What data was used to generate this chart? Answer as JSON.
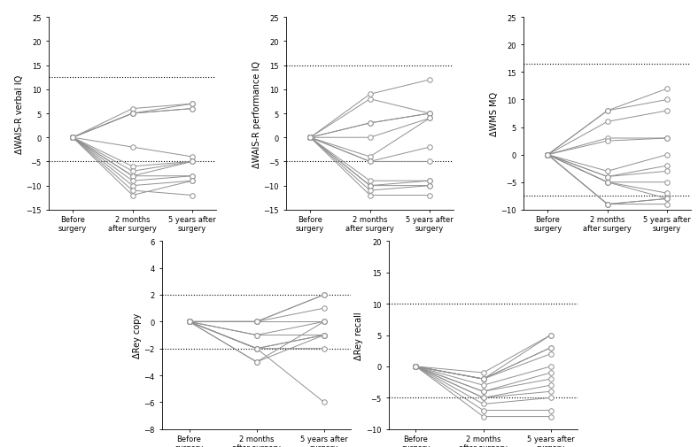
{
  "subplot1": {
    "ylabel": "ΔWAIS-R verbal IQ",
    "hlines": [
      12.5,
      -5.0
    ],
    "ylim": [
      -15,
      25
    ],
    "yticks": [
      -15,
      -10,
      -5,
      0,
      5,
      10,
      15,
      20,
      25
    ],
    "data": [
      [
        0,
        6,
        7
      ],
      [
        0,
        5,
        7
      ],
      [
        0,
        5,
        6
      ],
      [
        0,
        5,
        6
      ],
      [
        0,
        -2,
        -4
      ],
      [
        0,
        -6,
        -5
      ],
      [
        0,
        -7,
        -5
      ],
      [
        0,
        -8,
        -5
      ],
      [
        0,
        -8,
        -8
      ],
      [
        0,
        -9,
        -8
      ],
      [
        0,
        -10,
        -9
      ],
      [
        0,
        -11,
        -12
      ],
      [
        0,
        -12,
        -9
      ]
    ]
  },
  "subplot2": {
    "ylabel": "ΔWAIS-R performance IQ",
    "hlines": [
      15.0,
      -5.0
    ],
    "ylim": [
      -15,
      25
    ],
    "yticks": [
      -15,
      -10,
      -5,
      0,
      5,
      10,
      15,
      20,
      25
    ],
    "data": [
      [
        0,
        9,
        12
      ],
      [
        0,
        8,
        5
      ],
      [
        0,
        3,
        5
      ],
      [
        0,
        3,
        5
      ],
      [
        0,
        0,
        4
      ],
      [
        0,
        -4,
        4
      ],
      [
        0,
        -5,
        -2
      ],
      [
        0,
        -5,
        -5
      ],
      [
        0,
        -9,
        -9
      ],
      [
        0,
        -10,
        -9
      ],
      [
        0,
        -10,
        -10
      ],
      [
        0,
        -11,
        -10
      ],
      [
        0,
        -12,
        -12
      ]
    ]
  },
  "subplot3": {
    "ylabel": "ΔWMS MQ",
    "hlines": [
      16.5,
      -7.5
    ],
    "ylim": [
      -10,
      25
    ],
    "yticks": [
      -10,
      -5,
      0,
      5,
      10,
      15,
      20,
      25
    ],
    "data": [
      [
        0,
        8,
        12
      ],
      [
        0,
        8,
        10
      ],
      [
        0,
        6,
        8
      ],
      [
        0,
        3,
        3
      ],
      [
        0,
        2.5,
        3
      ],
      [
        0,
        -3,
        0
      ],
      [
        0,
        -4,
        -2
      ],
      [
        0,
        -4,
        -3
      ],
      [
        0,
        -5,
        -5
      ],
      [
        0,
        -5,
        -7
      ],
      [
        0,
        -5,
        -8
      ],
      [
        0,
        -9,
        -8
      ],
      [
        0,
        -9,
        -8
      ],
      [
        0,
        -9,
        -9
      ]
    ]
  },
  "subplot4": {
    "ylabel": "ΔRey copy",
    "hlines": [
      2.0,
      -2.0
    ],
    "ylim": [
      -8,
      6
    ],
    "yticks": [
      -8,
      -6,
      -4,
      -2,
      0,
      2,
      4,
      6
    ],
    "data": [
      [
        0,
        0,
        2
      ],
      [
        0,
        0,
        2
      ],
      [
        0,
        0,
        1
      ],
      [
        0,
        0,
        0
      ],
      [
        0,
        -1,
        0
      ],
      [
        0,
        -1,
        -1
      ],
      [
        0,
        -2,
        -1
      ],
      [
        0,
        -2,
        -1
      ],
      [
        0,
        -2,
        -2
      ],
      [
        0,
        -2,
        -6
      ],
      [
        0,
        -3,
        0
      ],
      [
        0,
        -3,
        -1
      ]
    ]
  },
  "subplot5": {
    "ylabel": "ΔRey recall",
    "hlines": [
      10.0,
      -5.0
    ],
    "ylim": [
      -10,
      20
    ],
    "yticks": [
      -10,
      -5,
      0,
      5,
      10,
      15,
      20
    ],
    "data": [
      [
        0,
        -1,
        5
      ],
      [
        0,
        -2,
        5
      ],
      [
        0,
        -2,
        3
      ],
      [
        0,
        -2,
        3
      ],
      [
        0,
        -2,
        2
      ],
      [
        0,
        -3,
        0
      ],
      [
        0,
        -4,
        -1
      ],
      [
        0,
        -4,
        -2
      ],
      [
        0,
        -5,
        -3
      ],
      [
        0,
        -5,
        -4
      ],
      [
        0,
        -6,
        -5
      ],
      [
        0,
        -7,
        -7
      ],
      [
        0,
        -8,
        -8
      ]
    ]
  },
  "x_positions": [
    0,
    1,
    2
  ],
  "x_labels": [
    "Before\nsurgery",
    "2 months\nafter surgery",
    "5 years after\nsurgery"
  ],
  "marker_color": "white",
  "marker_edge_color": "#909090",
  "line_color": "#909090",
  "hline_color": "black",
  "hline_style": "dotted",
  "marker_size": 4,
  "line_width": 0.7,
  "marker_edge_width": 0.7,
  "background_color": "white"
}
